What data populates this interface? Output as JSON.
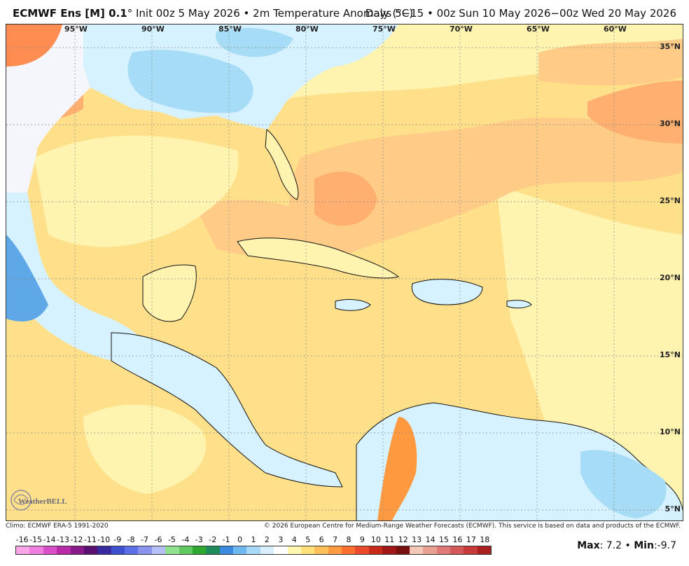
{
  "header": {
    "model": "ECMWF Ens [M] 0.1",
    "degree": "°",
    "init": "Init 00z 5 May 2026",
    "bullet": "•",
    "field": "2m Temperature Anomaly (°C)",
    "valid": "Days 5−15 • 00z Sun 10 May 2026−00z Wed 20 May 2026"
  },
  "map": {
    "lon_labels": [
      "95°W",
      "90°W",
      "85°W",
      "80°W",
      "75°W",
      "70°W",
      "65°W",
      "60°W"
    ],
    "lat_labels": [
      "35°N",
      "30°N",
      "25°N",
      "20°N",
      "15°N",
      "10°N",
      "5°N"
    ],
    "colors": {
      "ocean_warm_light": "#fff3b0",
      "ocean_warm": "#ffe08a",
      "ocean_warmer": "#ffcc88",
      "warm_patch": "#ffb070",
      "cool_light": "#d6f1ff",
      "cool": "#a6dcf5",
      "cold": "#5fa8e8",
      "neutral": "#f4f6fb",
      "coast": "#111111",
      "grid": "#888888"
    }
  },
  "credits": {
    "climo": "Climo: ECMWF ERA-5 1991-2020",
    "copyright": "© 2026 European Centre for Medium-Range Weather Forecasts (ECMWF). This service is based on data and products of the ECMWF."
  },
  "logo": {
    "text": "WeatherBELL"
  },
  "legend": {
    "labels": [
      "-16",
      "-15",
      "-14",
      "-13",
      "-12",
      "-11",
      "-10",
      "-9",
      "-8",
      "-7",
      "-6",
      "-5",
      "-4",
      "-3",
      "-2",
      "-1",
      "0",
      "1",
      "2",
      "3",
      "4",
      "5",
      "6",
      "7",
      "8",
      "9",
      "10",
      "11",
      "12",
      "13",
      "14",
      "15",
      "16",
      "17",
      "18"
    ],
    "colors": [
      "#f9a6e8",
      "#f07de0",
      "#d94fc8",
      "#b92aa8",
      "#8a1a8a",
      "#5a1070",
      "#3a2aa0",
      "#3e4fd0",
      "#5b6fe8",
      "#8a94f0",
      "#b6bff7",
      "#8fe08f",
      "#5fc85f",
      "#2fa82f",
      "#1f8a5a",
      "#3a8ae0",
      "#6fb8f0",
      "#a8d8f8",
      "#d8eefc",
      "#ffffff",
      "#fff6b0",
      "#ffe07a",
      "#ffc05a",
      "#ff9a40",
      "#ff7030",
      "#e84a2a",
      "#c82a1a",
      "#a01818",
      "#781010",
      "#f3c8b8",
      "#e8a090",
      "#e07878",
      "#d45858",
      "#c83a3a",
      "#a82020"
    ]
  },
  "stats": {
    "max_label": "Max",
    "max_value": ": 7.2",
    "sep": "•",
    "min_label": "Min",
    "min_value": ":-9.7"
  }
}
